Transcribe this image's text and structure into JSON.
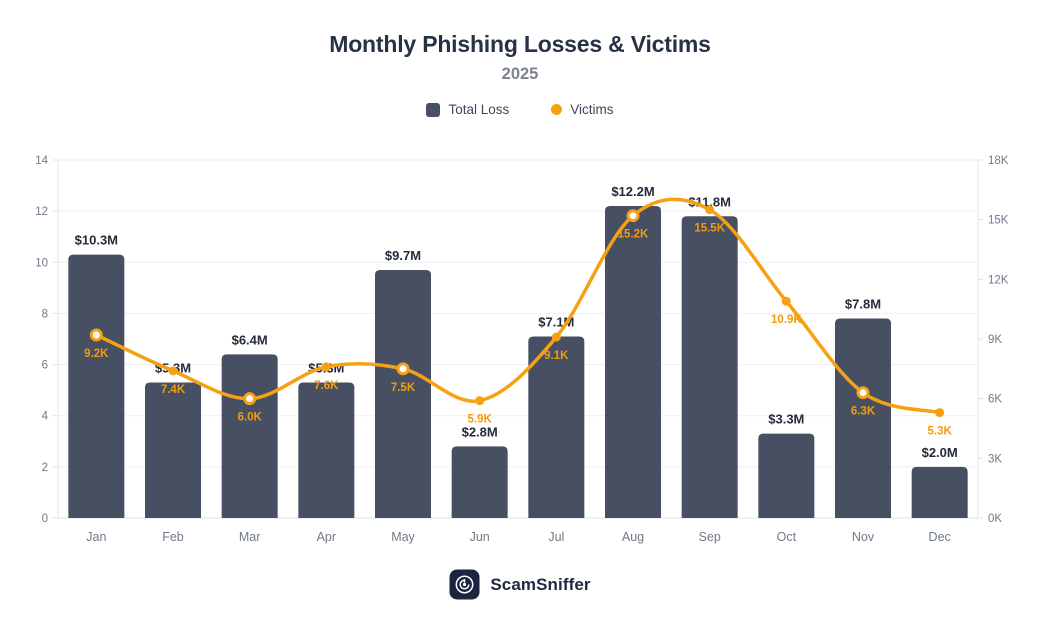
{
  "title": "Monthly Phishing Losses & Victims",
  "subtitle": "2025",
  "legend": [
    {
      "label": "Total Loss",
      "marker": "square",
      "color": "#475063"
    },
    {
      "label": "Victims",
      "marker": "dot",
      "color": "#F5A113"
    }
  ],
  "footer": {
    "brand": "ScamSniffer",
    "logo_icon": "scamsniffer-logo-icon"
  },
  "colors": {
    "background": "#FFFFFF",
    "bar": "#475063",
    "line": "#F5A113",
    "bar_label": "#242B3A",
    "victim_label": "#F09C0D",
    "axis_text": "#71798A",
    "grid": "#EEF0F3",
    "plot_border": "#E4E7EB",
    "axis_line": "#DDE1E7",
    "title": "#273245",
    "subtitle": "#7A8190",
    "logo_bg": "#1B2540"
  },
  "chart_data": {
    "type": "combo (bar + line)",
    "title": "Monthly Phishing Losses & Victims",
    "subtitle": "2025",
    "categories": [
      "Jan",
      "Feb",
      "Mar",
      "Apr",
      "May",
      "Jun",
      "Jul",
      "Aug",
      "Sep",
      "Oct",
      "Nov",
      "Dec"
    ],
    "series": [
      {
        "name": "Total Loss",
        "type": "bar",
        "axis": "left",
        "unit": "$M",
        "values": [
          10.3,
          5.3,
          6.4,
          5.3,
          9.7,
          2.8,
          7.1,
          12.2,
          11.8,
          3.3,
          7.8,
          2.0
        ],
        "labels": [
          "$10.3M",
          "$5.3M",
          "$6.4M",
          "$5.3M",
          "$9.7M",
          "$2.8M",
          "$7.1M",
          "$12.2M",
          "$11.8M",
          "$3.3M",
          "$7.8M",
          "$2.0M"
        ],
        "color": "#475063"
      },
      {
        "name": "Victims",
        "type": "line",
        "axis": "right",
        "unit": "K",
        "values": [
          9.2,
          7.4,
          6.0,
          7.6,
          7.5,
          5.9,
          9.1,
          15.2,
          15.5,
          10.9,
          6.3,
          5.3
        ],
        "labels": [
          "9.2K",
          "7.4K",
          "6.0K",
          "7.6K",
          "7.5K",
          "5.9K",
          "9.1K",
          "15.2K",
          "15.5K",
          "10.9K",
          "6.3K",
          "5.3K"
        ],
        "hollow_points": [
          true,
          false,
          true,
          false,
          true,
          false,
          false,
          true,
          false,
          false,
          true,
          false
        ],
        "color": "#F5A113"
      }
    ],
    "left_axis": {
      "ticks": [
        0,
        2,
        4,
        6,
        8,
        10,
        12,
        14
      ],
      "min": 0,
      "max": 14
    },
    "right_axis": {
      "tick_values": [
        0,
        3,
        6,
        9,
        12,
        15,
        18
      ],
      "tick_labels": [
        "0K",
        "3K",
        "6K",
        "9K",
        "12K",
        "15K",
        "18K"
      ],
      "min": 0,
      "max": 18
    },
    "grid": true,
    "legend_position": "top"
  }
}
